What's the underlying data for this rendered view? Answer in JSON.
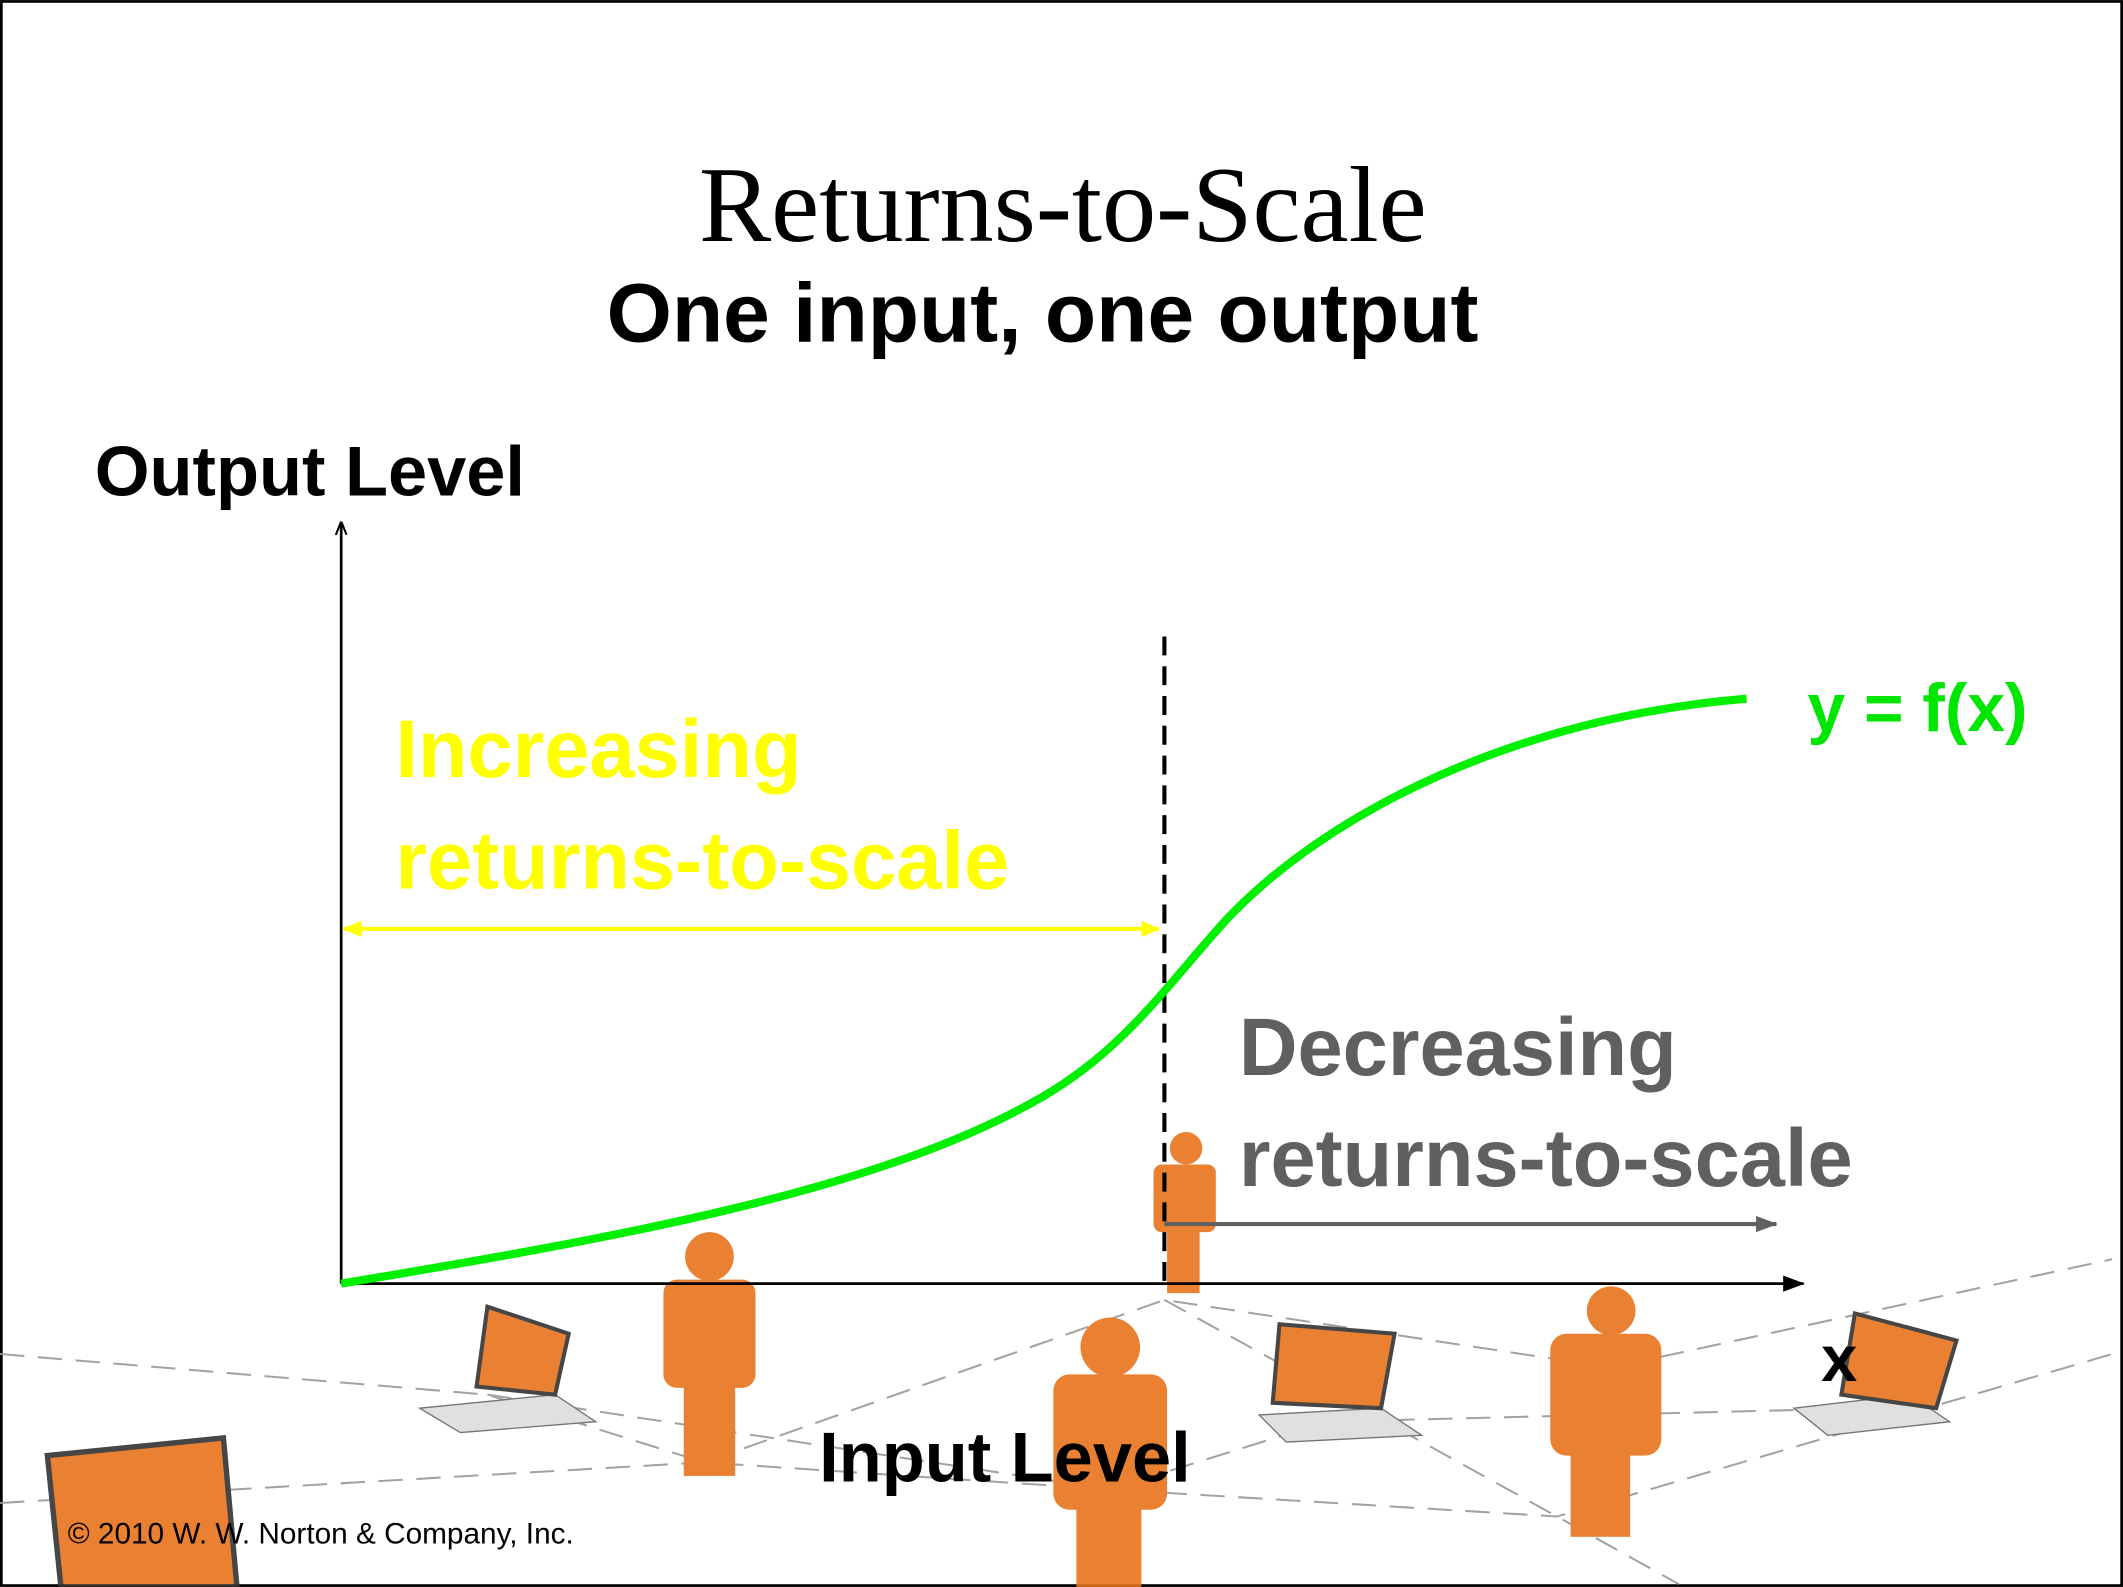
{
  "title": "Returns-to-Scale",
  "subtitle": "One input, one output",
  "axes": {
    "y_label": "Output Level",
    "x_symbol": "x",
    "x_label": "Input Level"
  },
  "curve_label": "y = f(x)",
  "regions": [
    {
      "lines": [
        "Increasing",
        "returns-to-scale"
      ]
    },
    {
      "lines": [
        "Decreasing",
        "returns-to-scale"
      ]
    }
  ],
  "footer": "© 2010 W. W. Norton & Company, Inc."
}
